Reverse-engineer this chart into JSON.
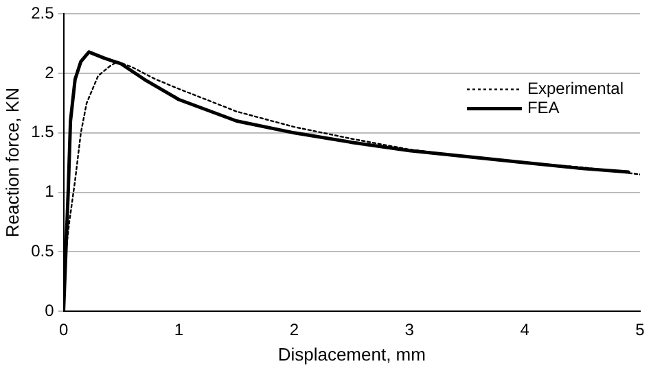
{
  "chart_data": {
    "type": "line",
    "xlabel": "Displacement, mm",
    "ylabel": "Reaction force, KN",
    "xlim": [
      0,
      5
    ],
    "xticks": [
      0,
      1,
      2,
      3,
      4,
      5
    ],
    "ylim": [
      0,
      2.5
    ],
    "yticks": [
      0,
      0.5,
      1,
      1.5,
      2,
      2.5
    ],
    "grid": "y",
    "legend": "top right",
    "marker": "none",
    "series": [
      {
        "name": "Experimental",
        "color": "#000000",
        "line_style": "dotted",
        "x": [
          0,
          0.02,
          0.05,
          0.1,
          0.15,
          0.2,
          0.3,
          0.4,
          0.47,
          0.6,
          0.8,
          1,
          1.5,
          2,
          2.5,
          3,
          3.5,
          4,
          4.5,
          5
        ],
        "values": [
          0,
          0.5,
          0.75,
          1.1,
          1.5,
          1.75,
          1.98,
          2.06,
          2.1,
          2.05,
          1.95,
          1.87,
          1.68,
          1.55,
          1.45,
          1.36,
          1.3,
          1.25,
          1.21,
          1.15
        ]
      },
      {
        "name": "FEA",
        "color": "#000000",
        "line_style": "solid",
        "x": [
          0,
          0.02,
          0.04,
          0.06,
          0.1,
          0.15,
          0.22,
          0.35,
          0.5,
          0.7,
          1,
          1.5,
          2,
          2.5,
          3,
          3.5,
          4,
          4.5,
          4.9
        ],
        "values": [
          0,
          0.5,
          1.0,
          1.6,
          1.95,
          2.1,
          2.18,
          2.13,
          2.08,
          1.95,
          1.78,
          1.6,
          1.5,
          1.42,
          1.35,
          1.3,
          1.25,
          1.2,
          1.17
        ]
      }
    ]
  }
}
